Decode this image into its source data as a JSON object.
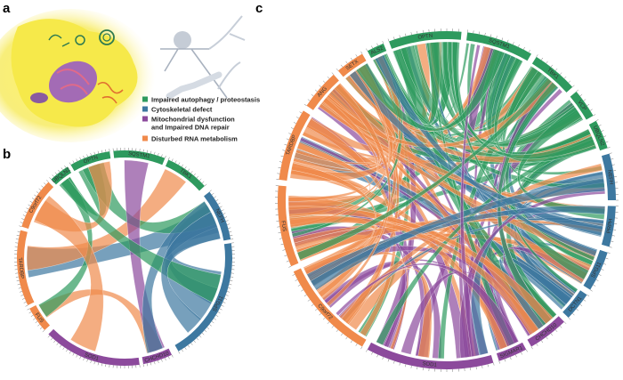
{
  "figure": {
    "panel_labels": [
      "a",
      "b",
      "c"
    ],
    "legend": [
      {
        "lines": [
          "Impaired autophagy / proteostasis"
        ],
        "color": "#2e9a5e"
      },
      {
        "lines": [
          "Cytoskeletal defect"
        ],
        "color": "#3d78a0"
      },
      {
        "lines": [
          "Mitochondrial dysfunction",
          "and Impaired DNA repair"
        ],
        "color": "#8c4a9c"
      },
      {
        "lines": [
          "Disturbed RNA metabolism"
        ],
        "color": "#f08a4b"
      }
    ],
    "chord_b": [
      {
        "label": "OPTN",
        "group": 0
      },
      {
        "label": "SQSTM1",
        "group": 0
      },
      {
        "label": "TBK1",
        "group": 0
      },
      {
        "label": "NEFH",
        "group": 1
      },
      {
        "label": "SPG11",
        "group": 1
      },
      {
        "label": "CHCHD10",
        "group": 2
      },
      {
        "label": "SOD1",
        "group": 2
      },
      {
        "label": "FUS",
        "group": 3
      },
      {
        "label": "TARDBP",
        "group": 3
      },
      {
        "label": "C9orf72",
        "group": 3
      },
      {
        "label": "UBQLN2",
        "group": 0
      }
    ],
    "chord_c": [
      {
        "label": "OPTN",
        "group": 0
      },
      {
        "label": "SQSTM1",
        "group": 0
      },
      {
        "label": "TBK1",
        "group": 0
      },
      {
        "label": "VCP",
        "group": 0
      },
      {
        "label": "UBQLN2",
        "group": 0
      },
      {
        "label": "NEFH",
        "group": 1
      },
      {
        "label": "PRPH",
        "group": 1
      },
      {
        "label": "SPG11",
        "group": 1
      },
      {
        "label": "DCTN1",
        "group": 1
      },
      {
        "label": "CHCHD10",
        "group": 2
      },
      {
        "label": "SIGMAR1",
        "group": 2
      },
      {
        "label": "SOD1",
        "group": 2
      },
      {
        "label": "C9orf72",
        "group": 3
      },
      {
        "label": "FUS",
        "group": 3
      },
      {
        "label": "TARDBP",
        "group": 3
      },
      {
        "label": "ANG",
        "group": 3
      },
      {
        "label": "SETX",
        "group": 3
      },
      {
        "label": "ALS2",
        "group": 0
      }
    ]
  }
}
